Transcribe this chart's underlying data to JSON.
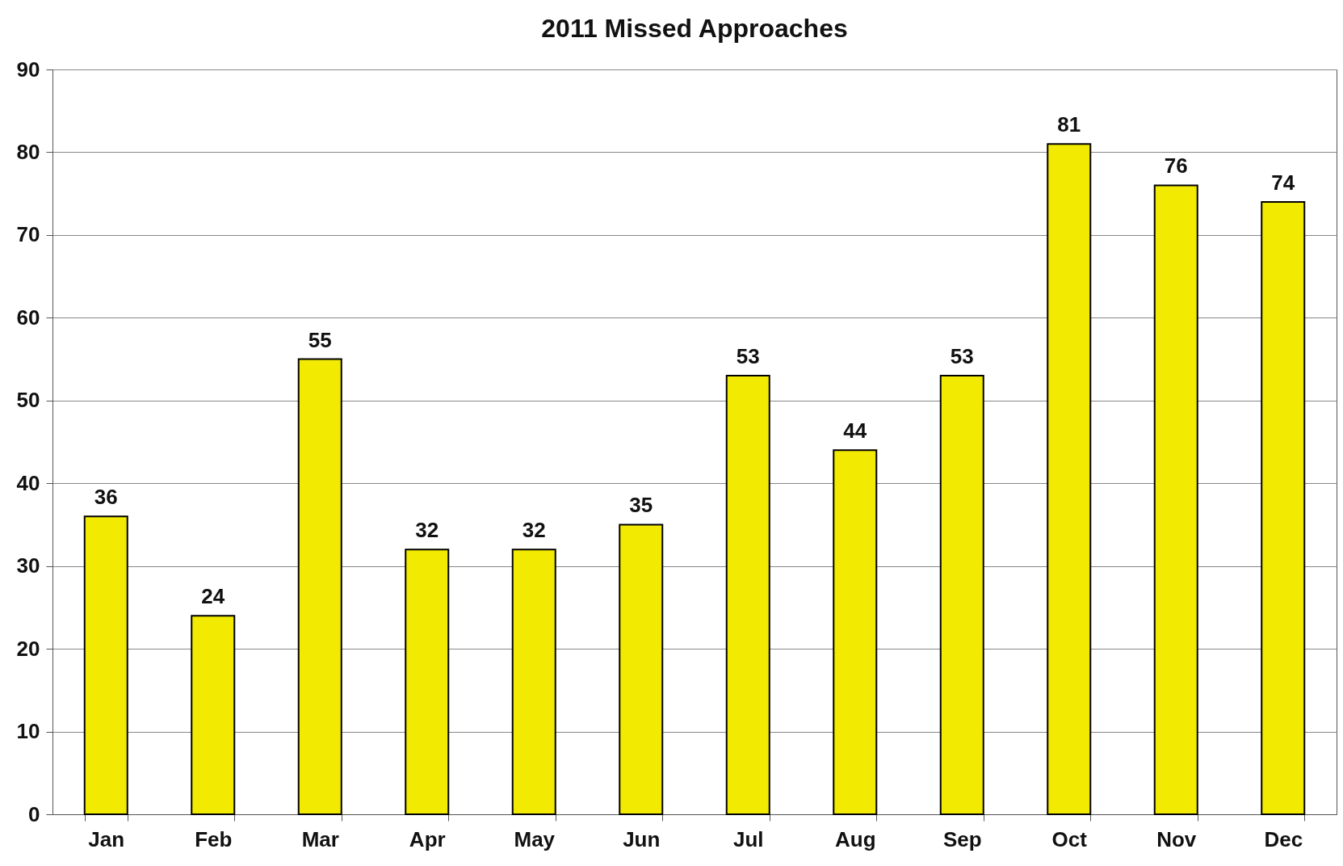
{
  "chart_data": {
    "type": "bar",
    "title": "2011 Missed Approaches",
    "categories": [
      "Jan",
      "Feb",
      "Mar",
      "Apr",
      "May",
      "Jun",
      "Jul",
      "Aug",
      "Sep",
      "Oct",
      "Nov",
      "Dec"
    ],
    "values": [
      36,
      24,
      55,
      32,
      32,
      35,
      53,
      44,
      53,
      81,
      76,
      74
    ],
    "color": "#f2ea00",
    "ylim": [
      0,
      90
    ],
    "yticks": [
      0,
      10,
      20,
      30,
      40,
      50,
      60,
      70,
      80,
      90
    ],
    "grid": "y",
    "data_labels": true
  }
}
